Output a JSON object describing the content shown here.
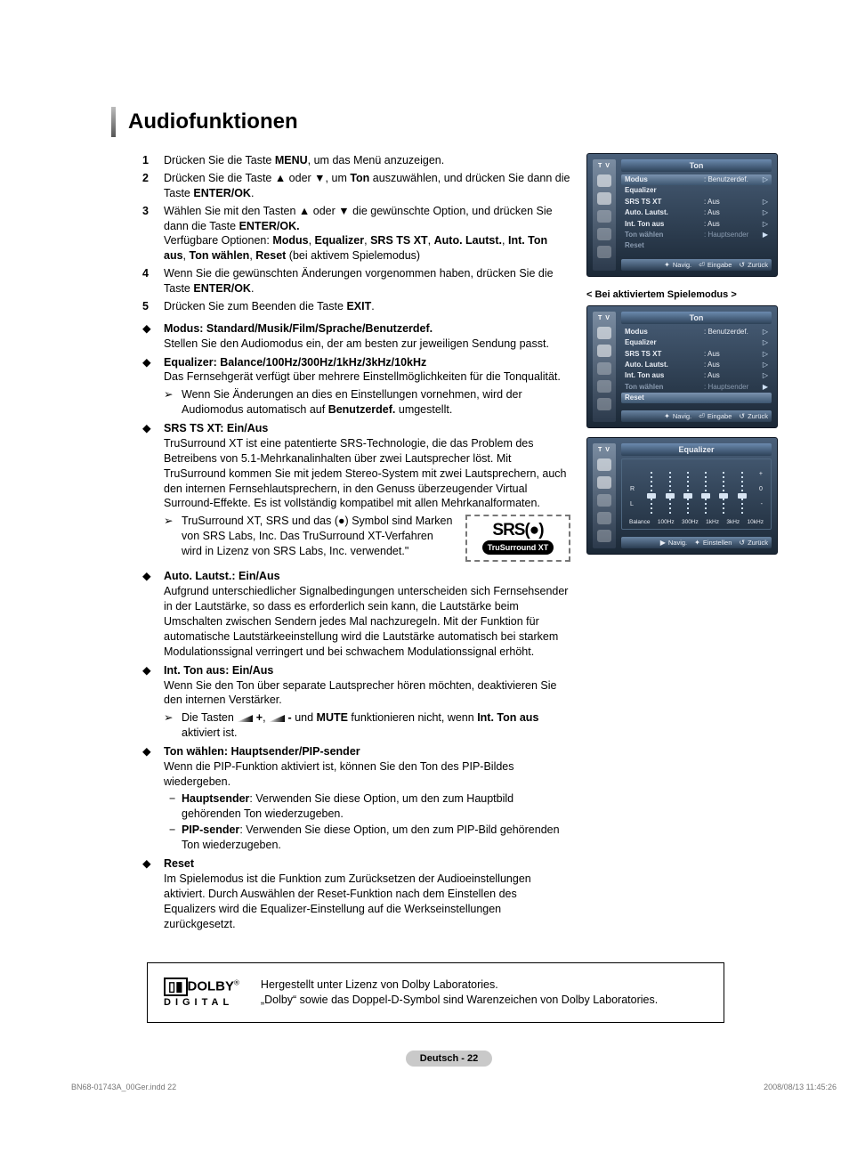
{
  "title": "Audiofunktionen",
  "steps": [
    {
      "n": "1",
      "html": "Drücken Sie die Taste <b>MENU</b>, um das Menü anzuzeigen."
    },
    {
      "n": "2",
      "html": "Drücken Sie die Taste ▲ oder ▼, um <b>Ton</b> auszuwählen, und drücken Sie dann die Taste <b>ENTER/OK</b>."
    },
    {
      "n": "3",
      "html": "Wählen Sie mit den Tasten ▲ oder ▼ die gewünschte Option, und drücken Sie dann die Taste <b>ENTER/OK.</b><br>Verfügbare Optionen: <b>Modus</b>, <b>Equalizer</b>, <b>SRS TS XT</b>, <b>Auto. Lautst.</b>, <b>Int. Ton aus</b>, <b>Ton wählen</b>, <b>Reset</b> (bei aktivem Spielemodus)"
    },
    {
      "n": "4",
      "html": "Wenn Sie die gewünschten Änderungen vorgenommen haben, drücken Sie die Taste <b>ENTER/OK</b>."
    },
    {
      "n": "5",
      "html": "Drücken Sie zum Beenden die Taste <b>EXIT</b>."
    }
  ],
  "bullets_top": [
    {
      "head": "Modus: Standard/Musik/Film/Sprache/Benutzerdef.",
      "body": "Stellen Sie den Audiomodus ein, der am besten zur jeweiligen Sendung passt."
    },
    {
      "head": "Equalizer: Balance/100Hz/300Hz/1kHz/3kHz/10kHz",
      "body": "Das Fernsehgerät verfügt über mehrere Einstellmöglichkeiten für die Tonqualität.",
      "sub": "Wenn Sie Änderungen an dies en Einstellungen vornehmen, wird der Audiomodus automatisch auf <b>Benutzerdef.</b> umgestellt."
    },
    {
      "head": "SRS TS XT: Ein/Aus",
      "body": "TruSurround XT ist eine patentierte SRS-Technologie, die das Problem des Betreibens von 5.1-Mehrkanalinhalten über zwei Lautsprecher löst. Mit TruSurround kommen Sie mit jedem Stereo-System mit zwei Lautsprechern, auch den internen Fernsehlautsprechern, in den Genuss überzeugender Virtual Surround-Effekte. Es ist vollständig kompatibel mit allen Mehrkanalformaten.",
      "sub": "TruSurround XT, SRS und das (●) Symbol sind Marken von SRS Labs, Inc. Das TruSurround XT-Verfahren wird in Lizenz von SRS Labs, Inc. verwendet.\""
    }
  ],
  "bullets_bottom": [
    {
      "head": "Auto. Lautst.: Ein/Aus",
      "body": "Aufgrund unterschiedlicher Signalbedingungen unterscheiden sich Fernsehsender in der Lautstärke, so dass es erforderlich sein kann, die Lautstärke beim Umschalten zwischen Sendern jedes Mal nachzuregeln. Mit der Funktion für automatische Lautstärkeeinstellung wird die Lautstärke automatisch bei starkem Modulationssignal verringert und bei schwachem Modulationssignal erhöht."
    },
    {
      "head": "Int. Ton aus: Ein/Aus",
      "body": "Wenn Sie den Ton über separate Lautsprecher hören möchten, deaktivieren Sie den internen Verstärker.",
      "sub_html": "Die Tasten <span class='vol-ico'></span> <b>+</b>, <span class='vol-ico'></span> <b>-</b> und <b>MUTE</b> funktionieren nicht, wenn <b>Int. Ton aus</b> aktiviert ist."
    },
    {
      "head": "Ton wählen: Hauptsender/PIP-sender",
      "body": "Wenn die PIP-Funktion aktiviert ist, können Sie den Ton des PIP-Bildes wiedergeben.",
      "dashes": [
        {
          "k": "Hauptsender",
          "t": ": Verwenden Sie diese Option, um den zum Hauptbild gehörenden Ton wiederzugeben."
        },
        {
          "k": "PIP-sender",
          "t": ": Verwenden Sie diese Option, um den zum PIP-Bild gehörenden Ton wiederzugeben."
        }
      ]
    },
    {
      "head": "Reset",
      "body": "Im Spielemodus ist die Funktion zum Zurücksetzen der Audioeinstellungen aktiviert. Durch Auswählen der Reset-Funktion nach dem Einstellen des Equalizers wird die Equalizer-Einstellung auf die Werkseinstellungen zurückgesetzt."
    }
  ],
  "srs": {
    "brand": "SRS(●)",
    "badge": "TruSurround XT"
  },
  "osd_caption": "< Bei aktiviertem Spielemodus >",
  "osd1": {
    "title": "Ton",
    "rows": [
      {
        "k": "Modus",
        "v": ": Benutzerdef.",
        "sel": true,
        "tri": "▷"
      },
      {
        "k": "Equalizer",
        "v": "",
        "tri": ""
      },
      {
        "k": "SRS TS XT",
        "v": ": Aus",
        "tri": "▷"
      },
      {
        "k": "Auto. Lautst.",
        "v": ": Aus",
        "tri": "▷"
      },
      {
        "k": "Int. Ton aus",
        "v": ": Aus",
        "tri": "▷"
      },
      {
        "k": "Ton wählen",
        "v": ": Hauptsender",
        "tri": "▶",
        "grey": true
      },
      {
        "k": "Reset",
        "v": "",
        "tri": "",
        "grey": true
      }
    ],
    "nav": [
      {
        "s": "✦",
        "t": "Navig."
      },
      {
        "s": "⏎",
        "t": "Eingabe"
      },
      {
        "s": "↺",
        "t": "Zurück"
      }
    ]
  },
  "osd2": {
    "title": "Ton",
    "rows": [
      {
        "k": "Modus",
        "v": ": Benutzerdef.",
        "tri": "▷"
      },
      {
        "k": "Equalizer",
        "v": "",
        "tri": "▷"
      },
      {
        "k": "SRS TS XT",
        "v": ": Aus",
        "tri": "▷"
      },
      {
        "k": "Auto. Lautst.",
        "v": ": Aus",
        "tri": "▷"
      },
      {
        "k": "Int. Ton aus",
        "v": ": Aus",
        "tri": "▷"
      },
      {
        "k": "Ton wählen",
        "v": ": Hauptsender",
        "tri": "▶",
        "grey": true
      },
      {
        "k": "Reset",
        "v": "",
        "sel": true,
        "tri": ""
      }
    ],
    "nav": [
      {
        "s": "✦",
        "t": "Navig."
      },
      {
        "s": "⏎",
        "t": "Eingabe"
      },
      {
        "s": "↺",
        "t": "Zurück"
      }
    ]
  },
  "osd3": {
    "title": "Equalizer",
    "left_scale": [
      "R",
      "L"
    ],
    "right_scale": [
      "+",
      "0",
      "-"
    ],
    "bands": [
      "Balance",
      "100Hz",
      "300Hz",
      "1kHz",
      "3kHz",
      "10kHz"
    ],
    "knob_pos": [
      24,
      24,
      24,
      24,
      24,
      24
    ],
    "nav": [
      {
        "s": "▶",
        "t": "Navig."
      },
      {
        "s": "✦",
        "t": "Einstellen"
      },
      {
        "s": "↺",
        "t": "Zurück"
      }
    ]
  },
  "dolby": {
    "logo_top": "▯▮ DOLBY",
    "logo_bottom": "DIGITAL",
    "text": "Hergestellt unter Lizenz von Dolby Laboratories.<br>„Dolby“ sowie das Doppel-D-Symbol sind Warenzeichen von Dolby Laboratories."
  },
  "page_num": "Deutsch - 22",
  "footer": {
    "file": "BN68-01743A_00Ger.indd   22",
    "ts": "2008/08/13   11:45:26"
  },
  "colors": {
    "osd_bg_top": "#4a607a",
    "osd_bg_bot": "#1b2836",
    "page_badge": "#c9c9c9"
  }
}
